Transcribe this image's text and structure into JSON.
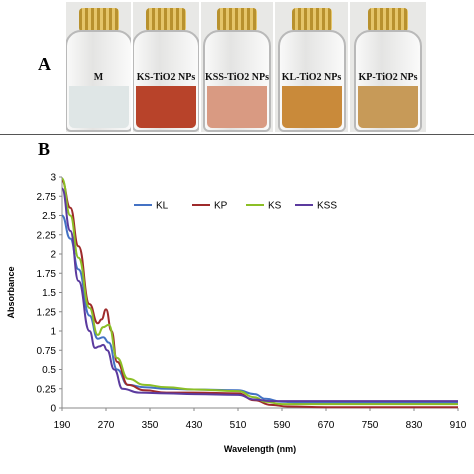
{
  "panel_a": {
    "label": "A",
    "vials": [
      {
        "label": "M",
        "liquid": "#dfe6e6"
      },
      {
        "label": "KS-TiO2 NPs",
        "liquid": "#b8432a"
      },
      {
        "label": "KSS-TiO2 NPs",
        "liquid": "#d99a82"
      },
      {
        "label": "KL-TiO2 NPs",
        "liquid": "#c98a3a"
      },
      {
        "label": "KP-TiO2 NPs",
        "liquid": "#c79a58"
      }
    ]
  },
  "panel_b": {
    "label": "B"
  },
  "chart_data": {
    "type": "line",
    "xlabel": "Wavelength (nm)",
    "ylabel": "Absorbance",
    "xlim": [
      190,
      910
    ],
    "ylim": [
      0,
      3
    ],
    "xticks": [
      "190",
      "270",
      "350",
      "430",
      "510",
      "590",
      "670",
      "750",
      "830",
      "910"
    ],
    "yticks": [
      "0",
      "0.25",
      "0.5",
      "0.75",
      "1",
      "1.25",
      "1.5",
      "1.75",
      "2",
      "2.25",
      "2.5",
      "2.75",
      "3"
    ],
    "legend_position": "top-center",
    "series": [
      {
        "name": "KL",
        "color": "#4472c4",
        "x": [
          190,
          205,
          220,
          240,
          255,
          265,
          275,
          290,
          310,
          340,
          380,
          430,
          510,
          540,
          560,
          590,
          620,
          670,
          750,
          830,
          910
        ],
        "y": [
          2.5,
          2.2,
          1.8,
          1.2,
          0.9,
          0.92,
          0.85,
          0.5,
          0.3,
          0.27,
          0.25,
          0.24,
          0.23,
          0.18,
          0.12,
          0.08,
          0.07,
          0.07,
          0.07,
          0.07,
          0.07
        ]
      },
      {
        "name": "KP",
        "color": "#9e2a2b",
        "x": [
          190,
          205,
          220,
          240,
          255,
          262,
          270,
          280,
          290,
          310,
          340,
          380,
          430,
          510,
          540,
          570,
          600,
          670,
          750,
          830,
          910
        ],
        "y": [
          2.95,
          2.6,
          2.1,
          1.35,
          1.1,
          1.15,
          1.28,
          1.0,
          0.6,
          0.3,
          0.23,
          0.2,
          0.2,
          0.19,
          0.1,
          0.04,
          0.02,
          0.01,
          0.01,
          0.01,
          0.01
        ]
      },
      {
        "name": "KS",
        "color": "#8cbf26",
        "x": [
          190,
          205,
          220,
          240,
          255,
          265,
          275,
          290,
          310,
          340,
          380,
          430,
          510,
          540,
          560,
          590,
          670,
          750,
          830,
          910
        ],
        "y": [
          2.98,
          2.5,
          1.95,
          1.3,
          0.95,
          1.05,
          1.08,
          0.65,
          0.38,
          0.3,
          0.27,
          0.24,
          0.22,
          0.14,
          0.08,
          0.05,
          0.05,
          0.05,
          0.05,
          0.05
        ]
      },
      {
        "name": "KSS",
        "color": "#5b3a9e",
        "x": [
          190,
          205,
          220,
          240,
          250,
          258,
          265,
          272,
          285,
          300,
          330,
          380,
          430,
          510,
          540,
          570,
          600,
          670,
          750,
          830,
          910
        ],
        "y": [
          2.85,
          2.3,
          1.65,
          1.0,
          0.78,
          0.8,
          0.82,
          0.75,
          0.5,
          0.25,
          0.2,
          0.19,
          0.18,
          0.17,
          0.11,
          0.09,
          0.09,
          0.09,
          0.09,
          0.09,
          0.09
        ]
      }
    ]
  }
}
